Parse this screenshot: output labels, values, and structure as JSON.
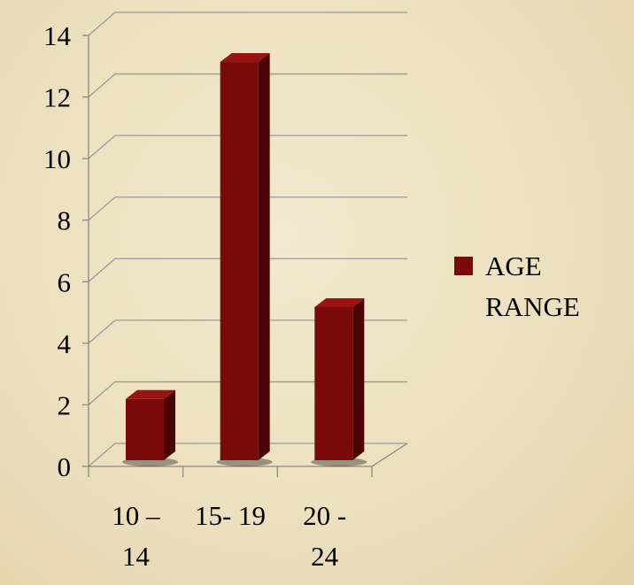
{
  "chart_data": {
    "type": "bar3d",
    "categories": [
      "10 – 14",
      "15- 19",
      "20 - 24"
    ],
    "series": [
      {
        "name": "AGE RANGE",
        "color": "#7a0a0a",
        "values": [
          2,
          13,
          5
        ]
      }
    ],
    "ylim": [
      0,
      14
    ],
    "yticks": [
      0,
      2,
      4,
      6,
      8,
      10,
      12,
      14
    ],
    "grid": true,
    "legend": "right"
  }
}
